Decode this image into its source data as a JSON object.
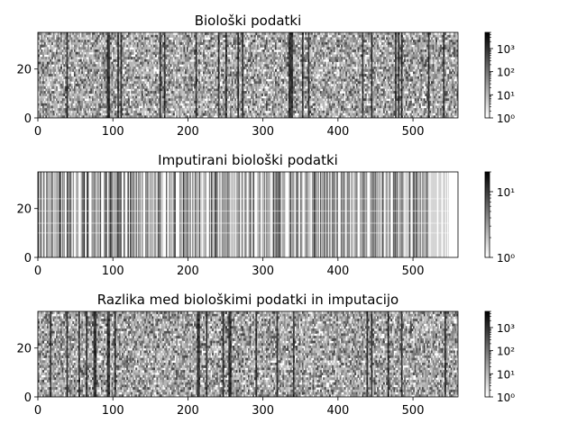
{
  "chart_data": [
    {
      "type": "heatmap",
      "title": "Biološki podatki",
      "xlim": [
        0,
        560
      ],
      "ylim": [
        0,
        35
      ],
      "xticks": [
        "0",
        "100",
        "200",
        "300",
        "400",
        "500"
      ],
      "yticks": [
        "0",
        "20"
      ],
      "colorbar": {
        "scale": "log",
        "range": [
          1,
          5000
        ],
        "ticks": [
          "10⁰",
          "10¹",
          "10²",
          "10³"
        ]
      },
      "pattern": "dense-speckle"
    },
    {
      "type": "heatmap",
      "title": "Imputirani biološki podatki",
      "xlim": [
        0,
        560
      ],
      "ylim": [
        0,
        35
      ],
      "xticks": [
        "0",
        "100",
        "200",
        "300",
        "400",
        "500"
      ],
      "yticks": [
        "0",
        "20"
      ],
      "colorbar": {
        "scale": "log",
        "range": [
          1,
          20
        ],
        "ticks": [
          "10⁰",
          "10¹"
        ]
      },
      "pattern": "vertical-stripes"
    },
    {
      "type": "heatmap",
      "title": "Razlika med biološkimi podatki in imputacijo",
      "xlim": [
        0,
        560
      ],
      "ylim": [
        0,
        35
      ],
      "xticks": [
        "0",
        "100",
        "200",
        "300",
        "400",
        "500"
      ],
      "yticks": [
        "0",
        "20"
      ],
      "colorbar": {
        "scale": "log",
        "range": [
          1,
          5000
        ],
        "ticks": [
          "10⁰",
          "10¹",
          "10²",
          "10³"
        ]
      },
      "pattern": "dense-speckle"
    }
  ]
}
